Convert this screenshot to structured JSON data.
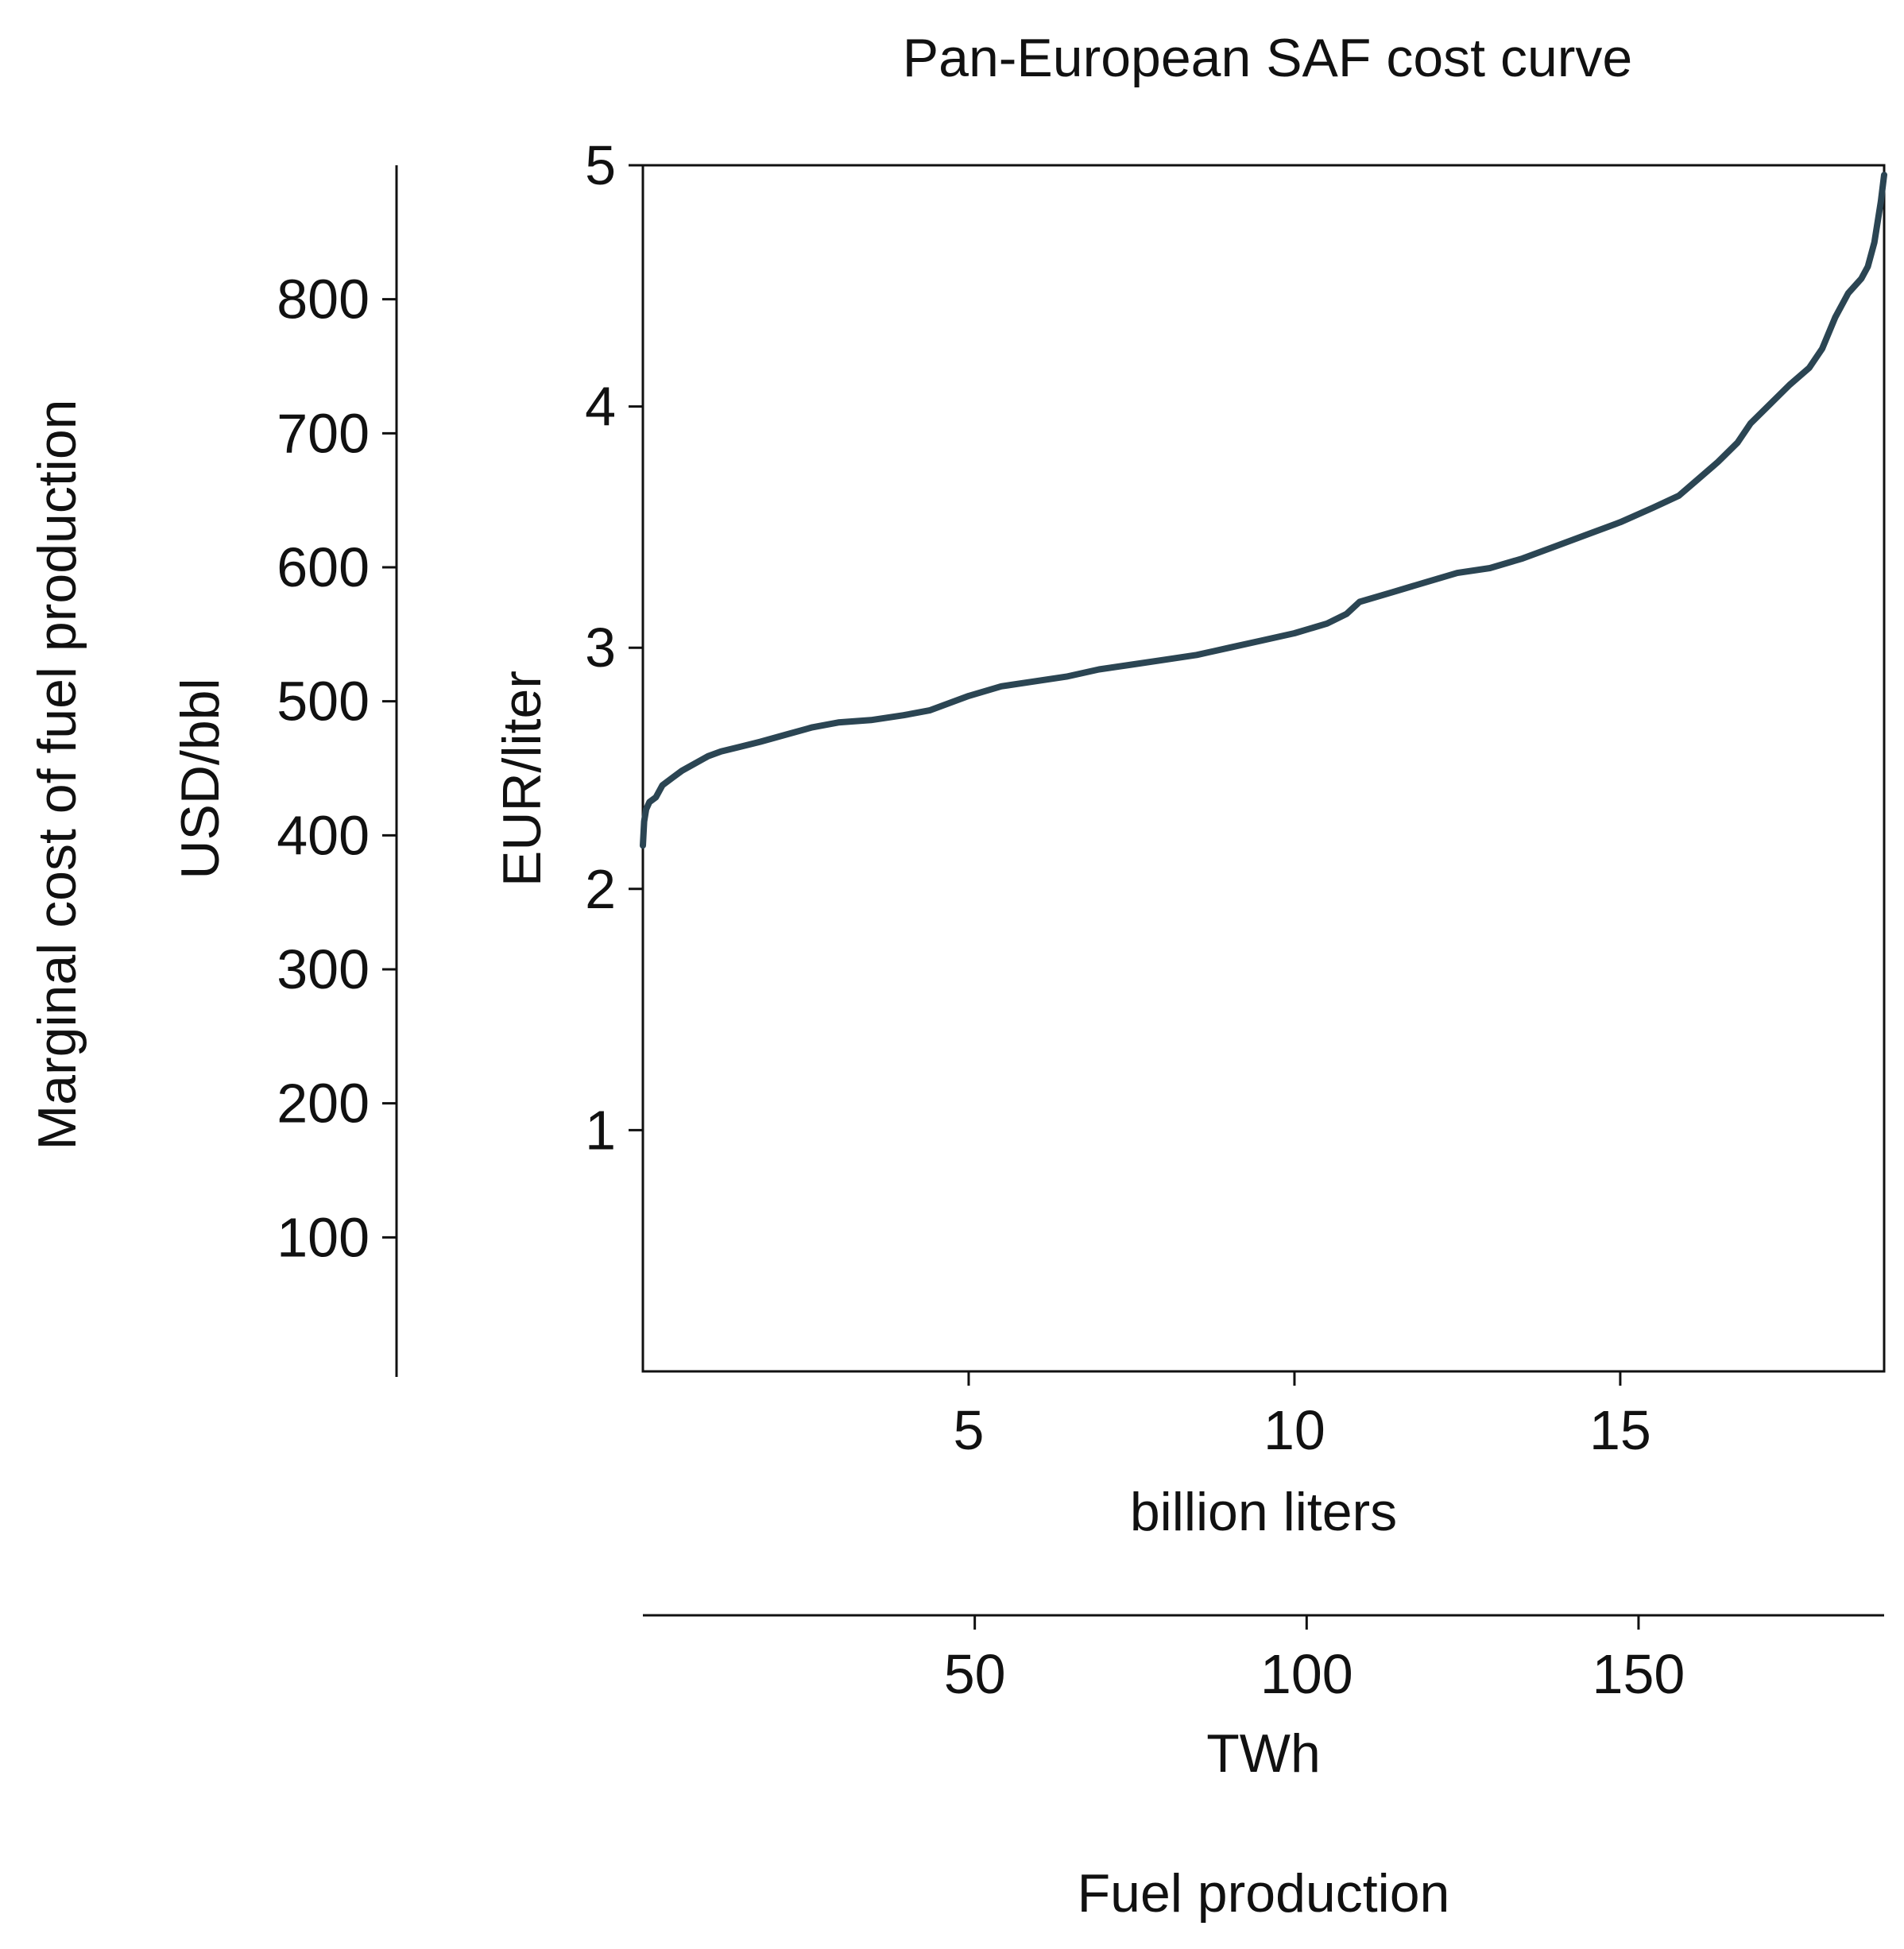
{
  "chart_data": {
    "type": "line",
    "title": "Pan-European SAF cost curve",
    "xlabel": "billion liters",
    "ylabel": "EUR/liter",
    "secondary_xlabel": "TWh",
    "secondary_ylabel": "USD/bbl",
    "outer_xlabel": "Fuel production",
    "outer_ylabel": "Marginal cost of fuel production",
    "xlim": [
      0,
      19.05
    ],
    "ylim": [
      0,
      5
    ],
    "secondary_xlim": [
      0,
      187
    ],
    "secondary_ylim": [
      0,
      900
    ],
    "x_ticks": [
      "5",
      "10",
      "15"
    ],
    "y_ticks": [
      "1",
      "2",
      "3",
      "4",
      "5"
    ],
    "secondary_x_ticks": [
      "50",
      "100",
      "150"
    ],
    "secondary_y_ticks": [
      "100",
      "200",
      "300",
      "400",
      "500",
      "600",
      "700",
      "800"
    ],
    "grid": false,
    "line_color": "#2b4553",
    "series": [
      {
        "x": [
          0.0,
          0.02,
          0.05,
          0.1,
          0.2,
          0.3,
          0.45,
          0.6,
          0.8,
          1.0,
          1.2,
          1.5,
          1.8,
          2.2,
          2.6,
          3.0,
          3.5,
          4.0,
          4.4,
          4.7,
          5.0,
          5.5,
          6.0,
          6.5,
          7.0,
          7.5,
          8.0,
          8.5,
          9.0,
          9.5,
          10.0,
          10.5,
          10.8,
          11.0,
          11.5,
          12.0,
          12.5,
          13.0,
          13.5,
          14.0,
          14.5,
          15.0,
          15.5,
          15.9,
          16.2,
          16.5,
          16.8,
          17.0,
          17.3,
          17.6,
          17.9,
          18.1,
          18.3,
          18.5,
          18.7,
          18.8,
          18.9,
          19.0,
          19.05
        ],
        "y": [
          2.18,
          2.28,
          2.33,
          2.36,
          2.38,
          2.43,
          2.46,
          2.49,
          2.52,
          2.55,
          2.57,
          2.59,
          2.61,
          2.64,
          2.67,
          2.69,
          2.7,
          2.72,
          2.74,
          2.77,
          2.8,
          2.84,
          2.86,
          2.88,
          2.91,
          2.93,
          2.95,
          2.97,
          3.0,
          3.03,
          3.06,
          3.1,
          3.14,
          3.19,
          3.23,
          3.27,
          3.31,
          3.33,
          3.37,
          3.42,
          3.47,
          3.52,
          3.58,
          3.63,
          3.7,
          3.77,
          3.85,
          3.93,
          4.01,
          4.09,
          4.16,
          4.24,
          4.37,
          4.47,
          4.53,
          4.58,
          4.68,
          4.85,
          4.96
        ]
      }
    ]
  }
}
